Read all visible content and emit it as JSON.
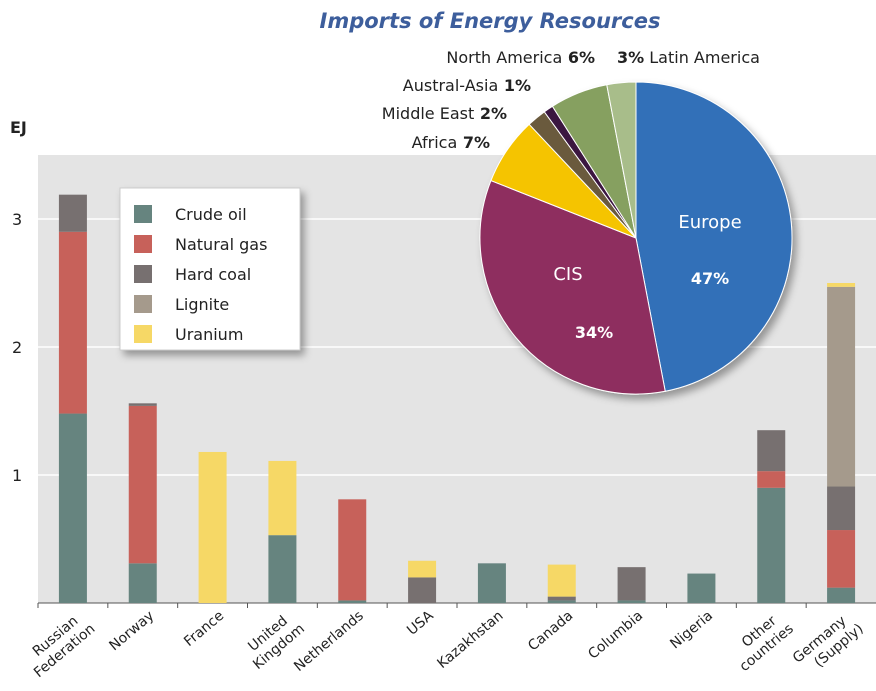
{
  "chart_data": [
    {
      "type": "bar",
      "stacked": true,
      "y_axis_label": "EJ",
      "categories": [
        "Russian Federation",
        "Norway",
        "France",
        "United Kingdom",
        "Netherlands",
        "USA",
        "Kazakhstan",
        "Canada",
        "Columbia",
        "Nigeria",
        "Other countries",
        "Germany (Supply)"
      ],
      "series": [
        {
          "name": "Crude oil",
          "color": "#66847f",
          "values": [
            1.48,
            0.31,
            0,
            0.53,
            0.02,
            0,
            0.31,
            0.02,
            0.02,
            0.23,
            0.9,
            0.12
          ]
        },
        {
          "name": "Natural gas",
          "color": "#c7615a",
          "values": [
            1.42,
            1.23,
            0,
            0,
            0.79,
            0,
            0,
            0,
            0,
            0,
            0.13,
            0.45
          ]
        },
        {
          "name": "Hard coal",
          "color": "#777070",
          "values": [
            0.29,
            0.02,
            0,
            0,
            0,
            0.2,
            0,
            0.03,
            0.26,
            0,
            0.32,
            0.34
          ]
        },
        {
          "name": "Lignite",
          "color": "#a59a8c",
          "values": [
            0,
            0,
            0,
            0,
            0,
            0,
            0,
            0,
            0,
            0,
            0,
            1.56
          ]
        },
        {
          "name": "Uranium",
          "color": "#f6d866",
          "values": [
            0,
            0,
            1.18,
            0.58,
            0,
            0.13,
            0,
            0.25,
            0,
            0,
            0,
            0.03
          ]
        }
      ],
      "ylim": [
        0,
        3.5
      ],
      "yticks": [
        1,
        2,
        3
      ],
      "grid": true,
      "legend": "upper left"
    },
    {
      "type": "pie",
      "title": "Imports of Energy Resources",
      "categories": [
        "Europe",
        "CIS",
        "Africa",
        "Middle East",
        "Austral-Asia",
        "North America",
        "Latin America"
      ],
      "values": [
        47,
        34,
        7,
        2,
        1,
        6,
        3
      ],
      "value_labels": [
        "47%",
        "34%",
        "7%",
        "2%",
        "1%",
        "6%",
        "3%"
      ],
      "colors": [
        "#3370b8",
        "#8e2f5e",
        "#f5c400",
        "#6b5a3e",
        "#3b1540",
        "#86a060",
        "#a8bd8a"
      ]
    }
  ]
}
